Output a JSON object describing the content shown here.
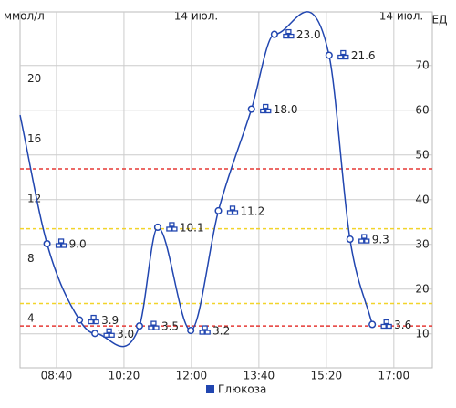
{
  "chart_data": {
    "type": "line",
    "y_axis_label": "ммол/л",
    "y2_axis_label": "ЕД",
    "date_labels": [
      "14 июл.",
      "14 июл."
    ],
    "x": [
      466,
      506,
      554,
      577,
      643,
      670,
      719,
      760,
      809,
      843,
      924,
      955,
      988
    ],
    "xlim": [
      466,
      1077
    ],
    "xticks": [
      {
        "value": 520,
        "label": "08:40"
      },
      {
        "value": 620,
        "label": "10:20"
      },
      {
        "value": 720,
        "label": "12:00"
      },
      {
        "value": 820,
        "label": "13:40"
      },
      {
        "value": 920,
        "label": "15:20"
      },
      {
        "value": 1020,
        "label": "17:00"
      }
    ],
    "ylim": [
      0.7,
      24.5
    ],
    "yticks": [
      4,
      8,
      12,
      16,
      20
    ],
    "y2lim": [
      2.4,
      82
    ],
    "y2ticks": [
      10,
      20,
      30,
      40,
      50,
      60,
      70
    ],
    "grid": true,
    "thresholds": [
      {
        "value": 14,
        "color": "#e53935"
      },
      {
        "value": 10,
        "color": "#f2d42a"
      },
      {
        "value": 5,
        "color": "#f2d42a"
      },
      {
        "value": 3.5,
        "color": "#e53935"
      }
    ],
    "series": [
      {
        "name": "Глюкоза",
        "color": "#2146b0",
        "values": [
          17.6,
          9.0,
          3.9,
          3.0,
          3.5,
          10.1,
          3.2,
          11.2,
          18.0,
          23.0,
          21.6,
          9.3,
          3.6
        ],
        "value_labels": [
          null,
          "9.0",
          "3.9",
          "3.0",
          "3.5",
          "10.1",
          "3.2",
          "11.2",
          "18.0",
          "23.0",
          "21.6",
          "9.3",
          "3.6"
        ]
      }
    ]
  }
}
